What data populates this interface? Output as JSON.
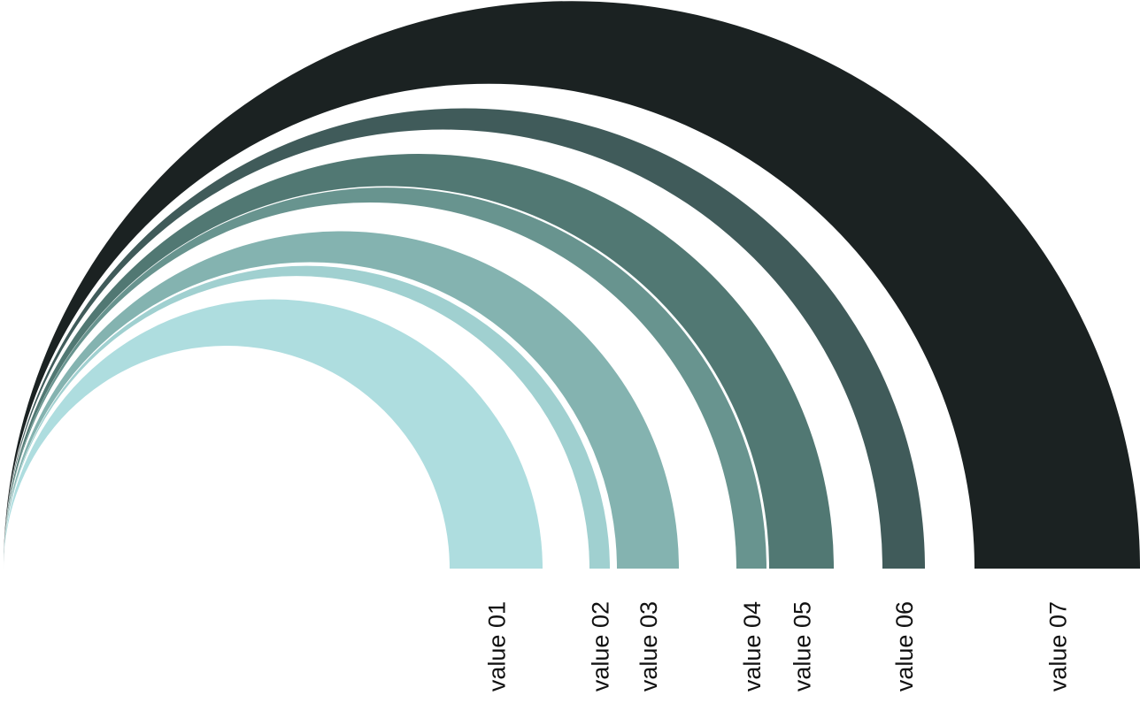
{
  "chart_data": {
    "type": "nested-arc",
    "title": "",
    "categories": [
      "value 01",
      "value 02",
      "value 03",
      "value 04",
      "value 05",
      "value 06",
      "value 07"
    ],
    "colors": [
      "#aedddf",
      "#a0d0d0",
      "#84b3b0",
      "#68948f",
      "#517873",
      "#405b5a",
      "#1b2222"
    ],
    "bands": [
      {
        "label": "value 01",
        "inner": 508,
        "outer": 613
      },
      {
        "label": "value 02",
        "inner": 666,
        "outer": 689
      },
      {
        "label": "value 03",
        "inner": 697,
        "outer": 767
      },
      {
        "label": "value 04",
        "inner": 832,
        "outer": 866
      },
      {
        "label": "value 05",
        "inner": 869,
        "outer": 942
      },
      {
        "label": "value 06",
        "inner": 997,
        "outer": 1045
      },
      {
        "label": "value 07",
        "inner": 1101,
        "outer": 1288
      }
    ]
  }
}
